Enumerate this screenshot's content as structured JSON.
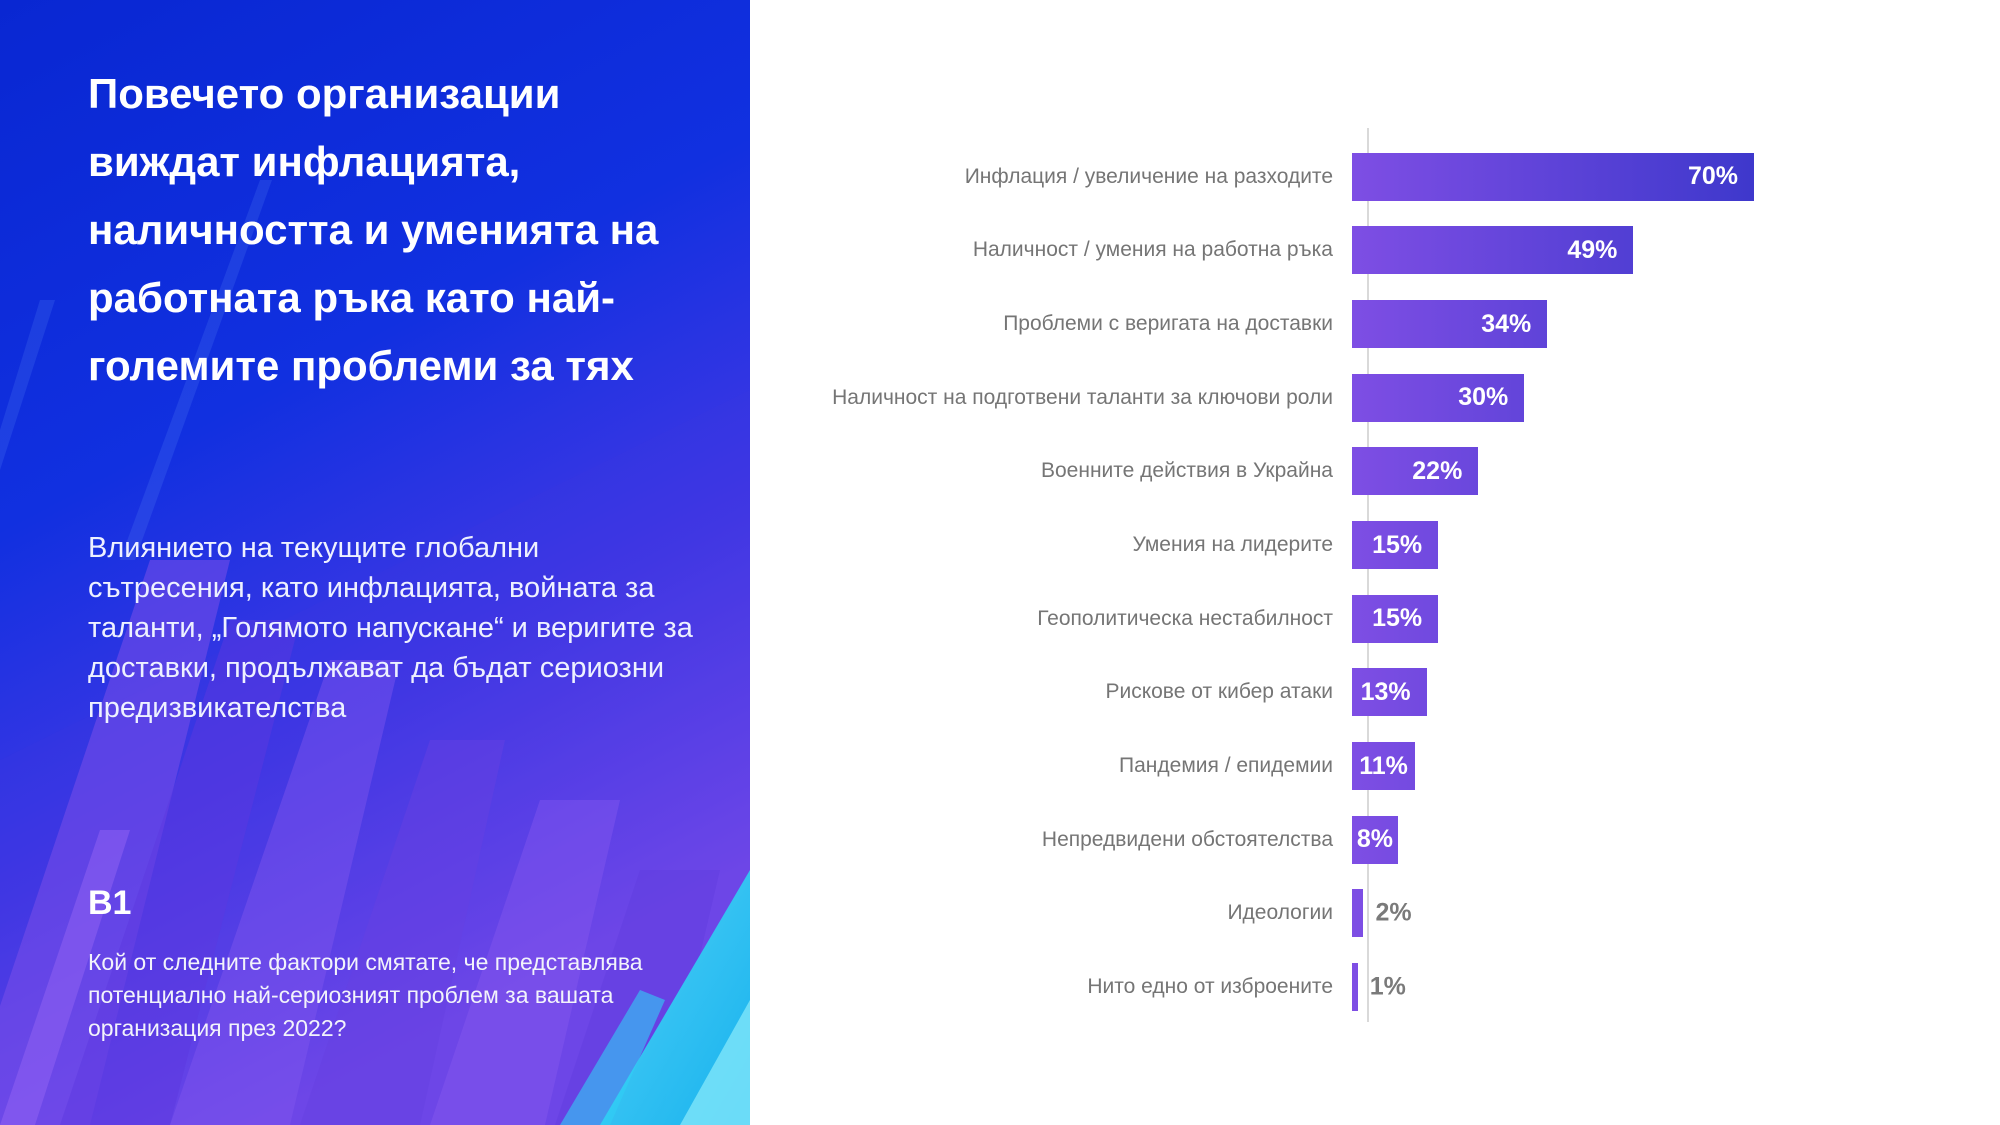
{
  "sidebar": {
    "title": "Повечето организации виждат инфлацията, наличността и уменията на работната ръка като най-големите проблеми за тях",
    "subtitle": "Влиянието на текущите глобални сътресения, като инфлацията, войната за таланти, „Голямото напускане“ и веригите за доставки, продължават да бъдат сериозни предизвикателства",
    "question_code": "B1",
    "question_text": "Кой от следните фактори смятате, че представлява потенциално най-сериозният проблем за вашата организация през 2022?"
  },
  "chart_data": {
    "type": "bar",
    "orientation": "horizontal",
    "title": "",
    "xlabel": "",
    "ylabel": "",
    "unit": "%",
    "xlim": [
      0,
      70
    ],
    "grid": false,
    "legend": false,
    "value_labels": "inside bars in white; values below 8% shown gray outside bar",
    "categories": [
      "Инфлация / увеличение на разходите",
      "Наличност / умения на работна ръка",
      "Проблеми с веригата на доставки",
      "Наличност на подготвени таланти за ключови роли",
      "Военните действия в Украйна",
      "Умения на лидерите",
      "Геополитическа нестабилност",
      "Рискове от кибер атаки",
      "Пандемия / епидемии",
      "Непредвидени обстоятелства",
      "Идеологии",
      "Нито едно от изброените"
    ],
    "values": [
      70,
      49,
      34,
      30,
      22,
      15,
      15,
      13,
      11,
      8,
      2,
      1
    ]
  },
  "colors": {
    "panel_blue_top": "#0927d2",
    "panel_purple_bottom": "#7c4bea",
    "panel_cyan_accent": "#2acbf4",
    "bar_gradient_start": "#7e4ee4",
    "bar_gradient_end": "#3e38cc",
    "category_label_gray": "#757575",
    "outside_value_gray": "#7a7a7a",
    "axis_line": "#d9d9d9",
    "chart_background": "#ffffff"
  }
}
